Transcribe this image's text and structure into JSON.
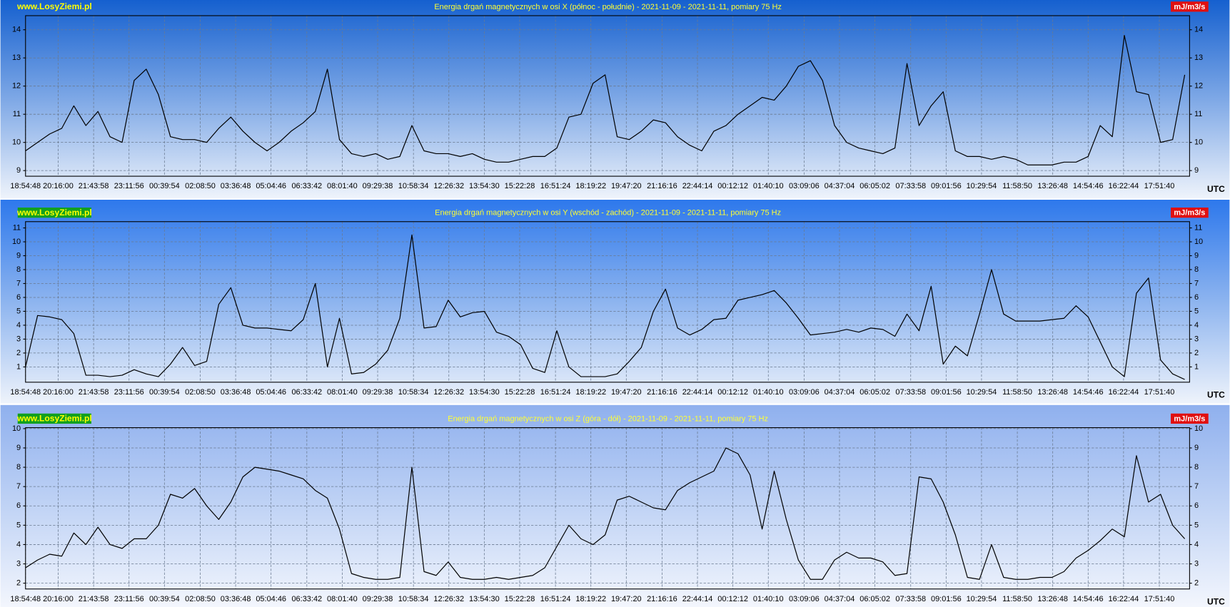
{
  "chart_data": [
    {
      "type": "line",
      "title": "Energia drgań magnetycznych w osi X (północ - południe) - 2021-11-09 - 2021-11-11, pomiary 75 Hz",
      "source": "www.LosyZiemi.pl",
      "y_unit": "mJ/m3/s",
      "x_unit": "UTC",
      "color": "#000000",
      "grid": true,
      "x": [
        0,
        0.5,
        1,
        1.5,
        2,
        2.5,
        3,
        3.5,
        4,
        4.5,
        5,
        5.5,
        6,
        6.5,
        7,
        7.5,
        8,
        8.5,
        9,
        9.5,
        10,
        10.5,
        11,
        11.5,
        12,
        12.5,
        13,
        13.5,
        14,
        14.5,
        15,
        15.5,
        16,
        16.5,
        17,
        17.5,
        18,
        18.5,
        19,
        19.5,
        20,
        20.5,
        21,
        21.5,
        22,
        22.5,
        23,
        23.5,
        24,
        24.5,
        25,
        25.5,
        26,
        26.5,
        27,
        27.5,
        28,
        28.5,
        29,
        29.5,
        30,
        30.5,
        31,
        31.5,
        32,
        32.5,
        33,
        33.5,
        34,
        34.5,
        35,
        35.5,
        36,
        36.5,
        37,
        37.5,
        38,
        38.5,
        39,
        39.5,
        40,
        40.5,
        41,
        41.5,
        42,
        42.5,
        43,
        43.5,
        44,
        44.5,
        45,
        45.5,
        46,
        46.5,
        47,
        47.5,
        48
      ],
      "values": [
        9.7,
        10.0,
        10.3,
        10.5,
        11.3,
        10.6,
        11.1,
        10.2,
        10.0,
        12.2,
        12.6,
        11.7,
        10.2,
        10.1,
        10.1,
        10.0,
        10.5,
        10.9,
        10.4,
        10.0,
        9.7,
        10.0,
        10.4,
        10.7,
        11.1,
        12.6,
        10.1,
        9.6,
        9.5,
        9.6,
        9.4,
        9.5,
        10.6,
        9.7,
        9.6,
        9.6,
        9.5,
        9.6,
        9.4,
        9.3,
        9.3,
        9.4,
        9.5,
        9.5,
        9.8,
        10.9,
        11.0,
        12.1,
        12.4,
        10.2,
        10.1,
        10.4,
        10.8,
        10.7,
        10.2,
        9.9,
        9.7,
        10.4,
        10.6,
        11.0,
        11.3,
        11.6,
        11.5,
        12.0,
        12.7,
        12.9,
        12.2,
        10.6,
        10.0,
        9.8,
        9.7,
        9.6,
        9.8,
        12.8,
        10.6,
        11.3,
        11.8,
        9.7,
        9.5,
        9.5,
        9.4,
        9.5,
        9.4,
        9.2,
        9.2,
        9.2,
        9.3,
        9.3,
        9.5,
        10.6,
        10.2,
        13.8,
        11.8,
        11.7,
        10.0,
        10.1,
        12.4
      ],
      "xlim": [
        0,
        48.2
      ],
      "ylim": [
        8.8,
        14.5
      ],
      "yticks": [
        9,
        10,
        11,
        12,
        13,
        14
      ],
      "xticks": [
        {
          "value": 0,
          "label": "18:54:48"
        },
        {
          "value": 1.3533,
          "label": "20:16:00"
        },
        {
          "value": 2.8194,
          "label": "21:43:58"
        },
        {
          "value": 4.2856,
          "label": "23:11:56"
        },
        {
          "value": 5.7517,
          "label": "00:39:54"
        },
        {
          "value": 7.2339,
          "label": "02:08:50"
        },
        {
          "value": 8.7,
          "label": "03:36:48"
        },
        {
          "value": 10.1661,
          "label": "05:04:46"
        },
        {
          "value": 11.6483,
          "label": "06:33:42"
        },
        {
          "value": 13.1144,
          "label": "08:01:40"
        },
        {
          "value": 14.5806,
          "label": "09:29:38"
        },
        {
          "value": 16.0628,
          "label": "10:58:34"
        },
        {
          "value": 17.5289,
          "label": "12:26:32"
        },
        {
          "value": 18.995,
          "label": "13:54:30"
        },
        {
          "value": 20.4611,
          "label": "15:22:28"
        },
        {
          "value": 21.9433,
          "label": "16:51:24"
        },
        {
          "value": 23.4094,
          "label": "18:19:22"
        },
        {
          "value": 24.8756,
          "label": "19:47:20"
        },
        {
          "value": 26.3578,
          "label": "21:16:16"
        },
        {
          "value": 27.8239,
          "label": "22:44:14"
        },
        {
          "value": 29.29,
          "label": "00:12:12"
        },
        {
          "value": 30.7561,
          "label": "01:40:10"
        },
        {
          "value": 32.2383,
          "label": "03:09:06"
        },
        {
          "value": 33.7044,
          "label": "04:37:04"
        },
        {
          "value": 35.1706,
          "label": "06:05:02"
        },
        {
          "value": 36.6528,
          "label": "07:33:58"
        },
        {
          "value": 38.1189,
          "label": "09:01:56"
        },
        {
          "value": 39.585,
          "label": "10:29:54"
        },
        {
          "value": 41.0672,
          "label": "11:58:50"
        },
        {
          "value": 42.5333,
          "label": "13:26:48"
        },
        {
          "value": 43.9994,
          "label": "14:54:46"
        },
        {
          "value": 45.4656,
          "label": "16:22:44"
        },
        {
          "value": 46.9478,
          "label": "17:51:40"
        }
      ]
    },
    {
      "type": "line",
      "title": "Energia drgań magnetycznych w osi Y (wschód - zachód) - 2021-11-09 - 2021-11-11, pomiary 75 Hz",
      "source": "www.LosyZiemi.pl",
      "y_unit": "mJ/m3/s",
      "x_unit": "UTC",
      "color": "#000000",
      "grid": true,
      "x": [
        0,
        0.5,
        1,
        1.5,
        2,
        2.5,
        3,
        3.5,
        4,
        4.5,
        5,
        5.5,
        6,
        6.5,
        7,
        7.5,
        8,
        8.5,
        9,
        9.5,
        10,
        10.5,
        11,
        11.5,
        12,
        12.5,
        13,
        13.5,
        14,
        14.5,
        15,
        15.5,
        16,
        16.5,
        17,
        17.5,
        18,
        18.5,
        19,
        19.5,
        20,
        20.5,
        21,
        21.5,
        22,
        22.5,
        23,
        23.5,
        24,
        24.5,
        25,
        25.5,
        26,
        26.5,
        27,
        27.5,
        28,
        28.5,
        29,
        29.5,
        30,
        30.5,
        31,
        31.5,
        32,
        32.5,
        33,
        33.5,
        34,
        34.5,
        35,
        35.5,
        36,
        36.5,
        37,
        37.5,
        38,
        38.5,
        39,
        39.5,
        40,
        40.5,
        41,
        41.5,
        42,
        42.5,
        43,
        43.5,
        44,
        44.5,
        45,
        45.5,
        46,
        46.5,
        47,
        47.5,
        48
      ],
      "values": [
        1.0,
        4.7,
        4.6,
        4.4,
        3.4,
        0.4,
        0.4,
        0.3,
        0.4,
        0.8,
        0.5,
        0.3,
        1.2,
        2.4,
        1.1,
        1.4,
        5.5,
        6.7,
        4.0,
        3.8,
        3.8,
        3.7,
        3.6,
        4.4,
        7.0,
        1.0,
        4.5,
        0.5,
        0.6,
        1.2,
        2.2,
        4.5,
        10.5,
        3.8,
        3.9,
        5.8,
        4.6,
        4.9,
        5.0,
        3.5,
        3.2,
        2.6,
        0.9,
        0.6,
        3.6,
        1.0,
        0.3,
        0.3,
        0.3,
        0.5,
        1.4,
        2.4,
        5.0,
        6.6,
        3.8,
        3.3,
        3.7,
        4.4,
        4.5,
        5.8,
        6.0,
        6.2,
        6.5,
        5.6,
        4.5,
        3.3,
        3.4,
        3.5,
        3.7,
        3.5,
        3.8,
        3.7,
        3.2,
        4.8,
        3.6,
        6.8,
        1.2,
        2.5,
        1.8,
        4.8,
        8.0,
        4.8,
        4.3,
        4.3,
        4.3,
        4.4,
        4.5,
        5.4,
        4.6,
        2.8,
        1.0,
        0.3,
        6.3,
        7.4,
        1.5,
        0.5,
        0.1
      ],
      "xlim": [
        0,
        48.2
      ],
      "ylim": [
        -0.1,
        11.45
      ],
      "yticks": [
        1,
        2,
        3,
        4,
        5,
        6,
        7,
        8,
        9,
        10,
        11
      ],
      "xticks": [
        {
          "value": 0,
          "label": "18:54:48"
        },
        {
          "value": 1.3533,
          "label": "20:16:00"
        },
        {
          "value": 2.8194,
          "label": "21:43:58"
        },
        {
          "value": 4.2856,
          "label": "23:11:56"
        },
        {
          "value": 5.7517,
          "label": "00:39:54"
        },
        {
          "value": 7.2339,
          "label": "02:08:50"
        },
        {
          "value": 8.7,
          "label": "03:36:48"
        },
        {
          "value": 10.1661,
          "label": "05:04:46"
        },
        {
          "value": 11.6483,
          "label": "06:33:42"
        },
        {
          "value": 13.1144,
          "label": "08:01:40"
        },
        {
          "value": 14.5806,
          "label": "09:29:38"
        },
        {
          "value": 16.0628,
          "label": "10:58:34"
        },
        {
          "value": 17.5289,
          "label": "12:26:32"
        },
        {
          "value": 18.995,
          "label": "13:54:30"
        },
        {
          "value": 20.4611,
          "label": "15:22:28"
        },
        {
          "value": 21.9433,
          "label": "16:51:24"
        },
        {
          "value": 23.4094,
          "label": "18:19:22"
        },
        {
          "value": 24.8756,
          "label": "19:47:20"
        },
        {
          "value": 26.3578,
          "label": "21:16:16"
        },
        {
          "value": 27.8239,
          "label": "22:44:14"
        },
        {
          "value": 29.29,
          "label": "00:12:12"
        },
        {
          "value": 30.7561,
          "label": "01:40:10"
        },
        {
          "value": 32.2383,
          "label": "03:09:06"
        },
        {
          "value": 33.7044,
          "label": "04:37:04"
        },
        {
          "value": 35.1706,
          "label": "06:05:02"
        },
        {
          "value": 36.6528,
          "label": "07:33:58"
        },
        {
          "value": 38.1189,
          "label": "09:01:56"
        },
        {
          "value": 39.585,
          "label": "10:29:54"
        },
        {
          "value": 41.0672,
          "label": "11:58:50"
        },
        {
          "value": 42.5333,
          "label": "13:26:48"
        },
        {
          "value": 43.9994,
          "label": "14:54:46"
        },
        {
          "value": 45.4656,
          "label": "16:22:44"
        },
        {
          "value": 46.9478,
          "label": "17:51:40"
        }
      ]
    },
    {
      "type": "line",
      "title": "Energia drgań magnetycznych w osi Z (góra - dół) - 2021-11-09 - 2021-11-11, pomiary 75 Hz",
      "source": "www.LosyZiemi.pl",
      "y_unit": "mJ/m3/s",
      "x_unit": "UTC",
      "color": "#000000",
      "grid": true,
      "x": [
        0,
        0.5,
        1,
        1.5,
        2,
        2.5,
        3,
        3.5,
        4,
        4.5,
        5,
        5.5,
        6,
        6.5,
        7,
        7.5,
        8,
        8.5,
        9,
        9.5,
        10,
        10.5,
        11,
        11.5,
        12,
        12.5,
        13,
        13.5,
        14,
        14.5,
        15,
        15.5,
        16,
        16.5,
        17,
        17.5,
        18,
        18.5,
        19,
        19.5,
        20,
        20.5,
        21,
        21.5,
        22,
        22.5,
        23,
        23.5,
        24,
        24.5,
        25,
        25.5,
        26,
        26.5,
        27,
        27.5,
        28,
        28.5,
        29,
        29.5,
        30,
        30.5,
        31,
        31.5,
        32,
        32.5,
        33,
        33.5,
        34,
        34.5,
        35,
        35.5,
        36,
        36.5,
        37,
        37.5,
        38,
        38.5,
        39,
        39.5,
        40,
        40.5,
        41,
        41.5,
        42,
        42.5,
        43,
        43.5,
        44,
        44.5,
        45,
        45.5,
        46,
        46.5,
        47,
        47.5,
        48
      ],
      "values": [
        2.8,
        3.2,
        3.5,
        3.4,
        4.6,
        4.0,
        4.9,
        4.0,
        3.8,
        4.3,
        4.3,
        5.0,
        6.6,
        6.4,
        6.9,
        6.0,
        5.3,
        6.2,
        7.5,
        8.0,
        7.9,
        7.8,
        7.6,
        7.4,
        6.8,
        6.4,
        4.8,
        2.5,
        2.3,
        2.2,
        2.2,
        2.3,
        8.0,
        2.6,
        2.4,
        3.1,
        2.3,
        2.2,
        2.2,
        2.3,
        2.2,
        2.3,
        2.4,
        2.8,
        3.9,
        5.0,
        4.3,
        4.0,
        4.5,
        6.3,
        6.5,
        6.2,
        5.9,
        5.8,
        6.8,
        7.2,
        7.5,
        7.8,
        9.0,
        8.7,
        7.6,
        4.8,
        7.8,
        5.3,
        3.2,
        2.2,
        2.2,
        3.2,
        3.6,
        3.3,
        3.3,
        3.1,
        2.4,
        2.5,
        7.5,
        7.4,
        6.2,
        4.5,
        2.3,
        2.2,
        4.0,
        2.3,
        2.2,
        2.2,
        2.3,
        2.3,
        2.6,
        3.3,
        3.7,
        4.2,
        4.8,
        4.4,
        8.6,
        6.2,
        6.6,
        5.0,
        4.3
      ],
      "xlim": [
        0,
        48.2
      ],
      "ylim": [
        1.7,
        10.05
      ],
      "yticks": [
        2,
        3,
        4,
        5,
        6,
        7,
        8,
        9,
        10
      ],
      "xticks": [
        {
          "value": 0,
          "label": "18:54:48"
        },
        {
          "value": 1.3533,
          "label": "20:16:00"
        },
        {
          "value": 2.8194,
          "label": "21:43:58"
        },
        {
          "value": 4.2856,
          "label": "23:11:56"
        },
        {
          "value": 5.7517,
          "label": "00:39:54"
        },
        {
          "value": 7.2339,
          "label": "02:08:50"
        },
        {
          "value": 8.7,
          "label": "03:36:48"
        },
        {
          "value": 10.1661,
          "label": "05:04:46"
        },
        {
          "value": 11.6483,
          "label": "06:33:42"
        },
        {
          "value": 13.1144,
          "label": "08:01:40"
        },
        {
          "value": 14.5806,
          "label": "09:29:38"
        },
        {
          "value": 16.0628,
          "label": "10:58:34"
        },
        {
          "value": 17.5289,
          "label": "12:26:32"
        },
        {
          "value": 18.995,
          "label": "13:54:30"
        },
        {
          "value": 20.4611,
          "label": "15:22:28"
        },
        {
          "value": 21.9433,
          "label": "16:51:24"
        },
        {
          "value": 23.4094,
          "label": "18:19:22"
        },
        {
          "value": 24.8756,
          "label": "19:47:20"
        },
        {
          "value": 26.3578,
          "label": "21:16:16"
        },
        {
          "value": 27.8239,
          "label": "22:44:14"
        },
        {
          "value": 29.29,
          "label": "00:12:12"
        },
        {
          "value": 30.7561,
          "label": "01:40:10"
        },
        {
          "value": 32.2383,
          "label": "03:09:06"
        },
        {
          "value": 33.7044,
          "label": "04:37:04"
        },
        {
          "value": 35.1706,
          "label": "06:05:02"
        },
        {
          "value": 36.6528,
          "label": "07:33:58"
        },
        {
          "value": 38.1189,
          "label": "09:01:56"
        },
        {
          "value": 39.585,
          "label": "10:29:54"
        },
        {
          "value": 41.0672,
          "label": "11:58:50"
        },
        {
          "value": 42.5333,
          "label": "13:26:48"
        },
        {
          "value": 43.9994,
          "label": "14:54:46"
        },
        {
          "value": 45.4656,
          "label": "16:22:44"
        },
        {
          "value": 46.9478,
          "label": "17:51:40"
        }
      ]
    }
  ]
}
